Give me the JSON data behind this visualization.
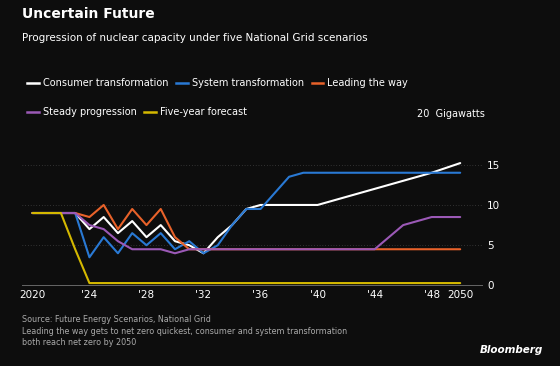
{
  "title_bold": "Uncertain Future",
  "title_sub": "Progression of nuclear capacity under five National Grid scenarios",
  "background_color": "#0d0d0d",
  "text_color": "#ffffff",
  "ylim": [
    0,
    20
  ],
  "yticks": [
    0,
    5,
    10,
    15
  ],
  "xlabel_ticks": [
    2020,
    2024,
    2028,
    2032,
    2036,
    2040,
    2044,
    2048,
    2050
  ],
  "xlabel_labels": [
    "2020",
    "'24",
    "'28",
    "'32",
    "'36",
    "'40",
    "'44",
    "'48",
    "2050"
  ],
  "source_text": "Source: Future Energy Scenarios, National Grid\nLeading the way gets to net zero quickest, consumer and system transformation\nboth reach net zero by 2050",
  "bloomberg_text": "Bloomberg",
  "series": {
    "consumer": {
      "label": "Consumer transformation",
      "color": "#ffffff",
      "x": [
        2020,
        2023,
        2024,
        2025,
        2026,
        2027,
        2028,
        2029,
        2030,
        2031,
        2032,
        2033,
        2034,
        2035,
        2036,
        2037,
        2038,
        2039,
        2040,
        2042,
        2044,
        2046,
        2048,
        2050
      ],
      "y": [
        9.0,
        9.0,
        7.0,
        8.5,
        6.5,
        8.0,
        6.0,
        7.5,
        5.5,
        5.0,
        4.0,
        6.0,
        7.5,
        9.5,
        10.0,
        10.0,
        10.0,
        10.0,
        10.0,
        11.0,
        12.0,
        13.0,
        14.0,
        15.2
      ]
    },
    "system": {
      "label": "System transformation",
      "color": "#2979d4",
      "x": [
        2020,
        2023,
        2024,
        2025,
        2026,
        2027,
        2028,
        2029,
        2030,
        2031,
        2032,
        2033,
        2034,
        2035,
        2036,
        2037,
        2038,
        2039,
        2040,
        2050
      ],
      "y": [
        9.0,
        9.0,
        3.5,
        6.0,
        4.0,
        6.5,
        5.0,
        6.5,
        4.5,
        5.5,
        4.0,
        5.0,
        7.5,
        9.5,
        9.5,
        11.5,
        13.5,
        14.0,
        14.0,
        14.0
      ]
    },
    "leading": {
      "label": "Leading the way",
      "color": "#e8622a",
      "x": [
        2020,
        2023,
        2024,
        2025,
        2026,
        2027,
        2028,
        2029,
        2030,
        2031,
        2032,
        2050
      ],
      "y": [
        9.0,
        9.0,
        8.5,
        10.0,
        7.0,
        9.5,
        7.5,
        9.5,
        6.0,
        4.5,
        4.5,
        4.5
      ]
    },
    "steady": {
      "label": "Steady progression",
      "color": "#9b59b6",
      "x": [
        2020,
        2023,
        2024,
        2025,
        2026,
        2027,
        2028,
        2029,
        2030,
        2031,
        2032,
        2033,
        2040,
        2044,
        2045,
        2046,
        2047,
        2048,
        2050
      ],
      "y": [
        9.0,
        9.0,
        7.5,
        7.0,
        5.5,
        4.5,
        4.5,
        4.5,
        4.0,
        4.5,
        4.5,
        4.5,
        4.5,
        4.5,
        6.0,
        7.5,
        8.0,
        8.5,
        8.5
      ]
    },
    "five_year": {
      "label": "Five-year forecast",
      "color": "#d4b800",
      "x": [
        2020,
        2022,
        2023,
        2024,
        2025,
        2050
      ],
      "y": [
        9.0,
        9.0,
        4.5,
        0.3,
        0.3,
        0.3
      ]
    }
  }
}
